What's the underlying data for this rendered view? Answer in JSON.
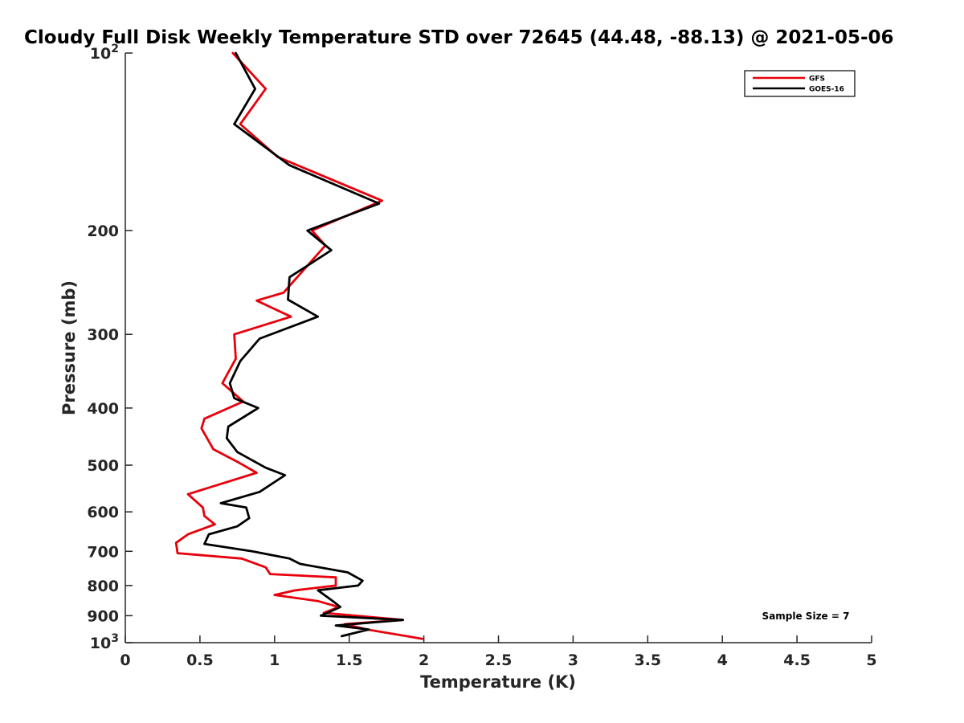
{
  "chart_data": {
    "type": "line",
    "title": "Cloudy Full Disk Weekly Temperature STD over 72645 (44.48, -88.13) @ 2021-05-06",
    "xlabel": "Temperature (K)",
    "ylabel": "Pressure (mb)",
    "xlim": [
      0,
      5
    ],
    "ylim": [
      100,
      1000
    ],
    "y_scale": "log",
    "y_reversed": true,
    "xticks": [
      "0",
      "0.5",
      "1",
      "1.5",
      "2",
      "2.5",
      "3",
      "3.5",
      "4",
      "4.5",
      "5"
    ],
    "yticks": [
      {
        "value": 100,
        "label": "10",
        "sup": "2"
      },
      {
        "value": 200,
        "label": "200",
        "sup": ""
      },
      {
        "value": 300,
        "label": "300",
        "sup": ""
      },
      {
        "value": 400,
        "label": "400",
        "sup": ""
      },
      {
        "value": 500,
        "label": "500",
        "sup": ""
      },
      {
        "value": 600,
        "label": "600",
        "sup": ""
      },
      {
        "value": 700,
        "label": "700",
        "sup": ""
      },
      {
        "value": 800,
        "label": "800",
        "sup": ""
      },
      {
        "value": 900,
        "label": "900",
        "sup": ""
      },
      {
        "value": 1000,
        "label": "10",
        "sup": "3"
      }
    ],
    "grid": false,
    "legend_position": "top-right",
    "annotation": "Sample Size = 7",
    "series": [
      {
        "name": "GFS",
        "color": "#e8000b",
        "points": [
          [
            0.72,
            100
          ],
          [
            0.94,
            115
          ],
          [
            0.77,
            132
          ],
          [
            1.02,
            150
          ],
          [
            1.72,
            178
          ],
          [
            1.25,
            200
          ],
          [
            1.34,
            212
          ],
          [
            1.06,
            255
          ],
          [
            0.88,
            263
          ],
          [
            1.11,
            280
          ],
          [
            0.73,
            300
          ],
          [
            0.74,
            330
          ],
          [
            0.65,
            363
          ],
          [
            0.79,
            390
          ],
          [
            0.53,
            417
          ],
          [
            0.51,
            433
          ],
          [
            0.59,
            470
          ],
          [
            0.76,
            495
          ],
          [
            0.88,
            515
          ],
          [
            0.42,
            560
          ],
          [
            0.52,
            590
          ],
          [
            0.53,
            610
          ],
          [
            0.6,
            630
          ],
          [
            0.42,
            655
          ],
          [
            0.34,
            677
          ],
          [
            0.35,
            705
          ],
          [
            0.78,
            720
          ],
          [
            0.94,
            745
          ],
          [
            0.97,
            765
          ],
          [
            1.41,
            775
          ],
          [
            1.41,
            800
          ],
          [
            1.14,
            815
          ],
          [
            1.0,
            830
          ],
          [
            1.29,
            850
          ],
          [
            1.43,
            870
          ],
          [
            1.33,
            890
          ],
          [
            1.86,
            915
          ],
          [
            1.47,
            930
          ],
          [
            1.62,
            950
          ],
          [
            1.99,
            985
          ]
        ]
      },
      {
        "name": "GOES-16",
        "color": "#000000",
        "points": [
          [
            0.74,
            100
          ],
          [
            0.87,
            115
          ],
          [
            0.73,
            132
          ],
          [
            1.1,
            155
          ],
          [
            1.7,
            180
          ],
          [
            1.22,
            200
          ],
          [
            1.38,
            216
          ],
          [
            1.1,
            240
          ],
          [
            1.09,
            262
          ],
          [
            1.29,
            280
          ],
          [
            0.9,
            305
          ],
          [
            0.77,
            333
          ],
          [
            0.7,
            363
          ],
          [
            0.73,
            385
          ],
          [
            0.89,
            400
          ],
          [
            0.69,
            430
          ],
          [
            0.68,
            450
          ],
          [
            0.75,
            475
          ],
          [
            0.94,
            505
          ],
          [
            1.07,
            520
          ],
          [
            0.9,
            555
          ],
          [
            0.64,
            580
          ],
          [
            0.81,
            590
          ],
          [
            0.83,
            615
          ],
          [
            0.75,
            635
          ],
          [
            0.56,
            655
          ],
          [
            0.53,
            680
          ],
          [
            0.85,
            700
          ],
          [
            1.1,
            720
          ],
          [
            1.17,
            735
          ],
          [
            1.49,
            760
          ],
          [
            1.59,
            785
          ],
          [
            1.56,
            800
          ],
          [
            1.29,
            815
          ],
          [
            1.39,
            850
          ],
          [
            1.44,
            870
          ],
          [
            1.31,
            900
          ],
          [
            1.86,
            915
          ],
          [
            1.41,
            935
          ],
          [
            1.63,
            950
          ],
          [
            1.45,
            975
          ]
        ]
      }
    ]
  }
}
